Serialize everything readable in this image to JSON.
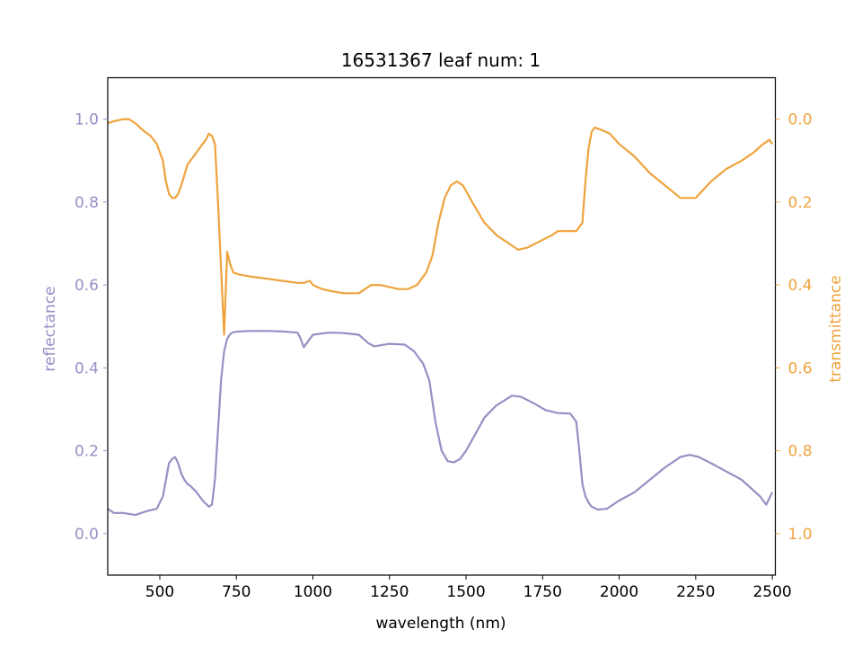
{
  "chart_data": {
    "type": "line",
    "title": "16531367 leaf num: 1",
    "xlabel": "wavelength (nm)",
    "ylabel_left": "reflectance",
    "ylabel_right": "transmittance",
    "xlim": [
      330,
      2510
    ],
    "ylim_left": [
      -0.1,
      1.1
    ],
    "ylim_right_inverted": [
      1.1,
      -0.1
    ],
    "grid": false,
    "x_ticks": [
      500,
      750,
      1000,
      1250,
      1500,
      1750,
      2000,
      2250,
      2500
    ],
    "y_ticks_left": [
      0.0,
      0.2,
      0.4,
      0.6,
      0.8,
      1.0
    ],
    "y_ticks_right": [
      0.0,
      0.2,
      0.4,
      0.6,
      0.8,
      1.0
    ],
    "colors": {
      "reflectance": "#9590c4",
      "transmittance": "#eea33d",
      "axis": "#000000"
    },
    "series": [
      {
        "name": "reflectance",
        "axis": "left",
        "x": [
          330,
          350,
          380,
          420,
          460,
          490,
          510,
          520,
          530,
          540,
          550,
          560,
          570,
          580,
          590,
          600,
          620,
          640,
          660,
          670,
          680,
          690,
          700,
          710,
          720,
          730,
          740,
          760,
          800,
          850,
          900,
          950,
          960,
          970,
          980,
          1000,
          1050,
          1100,
          1150,
          1180,
          1200,
          1250,
          1300,
          1330,
          1360,
          1380,
          1400,
          1420,
          1440,
          1460,
          1480,
          1500,
          1530,
          1560,
          1600,
          1650,
          1680,
          1720,
          1760,
          1800,
          1840,
          1860,
          1870,
          1880,
          1890,
          1900,
          1910,
          1930,
          1960,
          2000,
          2050,
          2100,
          2150,
          2200,
          2230,
          2260,
          2300,
          2350,
          2400,
          2430,
          2460,
          2480,
          2500
        ],
        "values": [
          0.06,
          0.05,
          0.05,
          0.045,
          0.055,
          0.06,
          0.09,
          0.13,
          0.17,
          0.18,
          0.185,
          0.17,
          0.145,
          0.13,
          0.12,
          0.115,
          0.1,
          0.08,
          0.065,
          0.07,
          0.13,
          0.25,
          0.37,
          0.44,
          0.47,
          0.482,
          0.486,
          0.488,
          0.489,
          0.489,
          0.488,
          0.485,
          0.47,
          0.45,
          0.46,
          0.48,
          0.485,
          0.484,
          0.48,
          0.46,
          0.452,
          0.458,
          0.456,
          0.44,
          0.41,
          0.37,
          0.27,
          0.2,
          0.175,
          0.172,
          0.18,
          0.2,
          0.24,
          0.28,
          0.31,
          0.333,
          0.33,
          0.315,
          0.298,
          0.291,
          0.29,
          0.27,
          0.2,
          0.12,
          0.09,
          0.075,
          0.065,
          0.058,
          0.06,
          0.08,
          0.1,
          0.13,
          0.16,
          0.185,
          0.19,
          0.185,
          0.17,
          0.15,
          0.13,
          0.11,
          0.09,
          0.07,
          0.1
        ]
      },
      {
        "name": "transmittance",
        "axis": "right",
        "x": [
          330,
          350,
          380,
          400,
          420,
          450,
          470,
          490,
          510,
          520,
          530,
          540,
          550,
          560,
          570,
          590,
          610,
          630,
          650,
          660,
          670,
          680,
          690,
          700,
          710,
          720,
          730,
          740,
          760,
          800,
          850,
          900,
          950,
          970,
          990,
          1000,
          1030,
          1060,
          1100,
          1150,
          1170,
          1190,
          1220,
          1250,
          1280,
          1310,
          1340,
          1370,
          1390,
          1410,
          1430,
          1450,
          1470,
          1490,
          1520,
          1560,
          1600,
          1640,
          1670,
          1700,
          1740,
          1780,
          1800,
          1830,
          1860,
          1880,
          1890,
          1900,
          1910,
          1920,
          1940,
          1970,
          2000,
          2050,
          2100,
          2150,
          2200,
          2250,
          2300,
          2350,
          2400,
          2440,
          2470,
          2490,
          2500
        ],
        "values": [
          0.01,
          0.005,
          0.0,
          0.0,
          0.01,
          0.03,
          0.04,
          0.06,
          0.1,
          0.15,
          0.18,
          0.19,
          0.19,
          0.18,
          0.16,
          0.11,
          0.09,
          0.07,
          0.05,
          0.035,
          0.04,
          0.06,
          0.2,
          0.36,
          0.52,
          0.32,
          0.35,
          0.37,
          0.375,
          0.38,
          0.385,
          0.39,
          0.395,
          0.395,
          0.39,
          0.4,
          0.41,
          0.415,
          0.42,
          0.42,
          0.41,
          0.4,
          0.4,
          0.405,
          0.41,
          0.41,
          0.4,
          0.37,
          0.33,
          0.25,
          0.19,
          0.16,
          0.15,
          0.16,
          0.2,
          0.25,
          0.28,
          0.3,
          0.315,
          0.31,
          0.295,
          0.28,
          0.27,
          0.27,
          0.27,
          0.25,
          0.15,
          0.07,
          0.03,
          0.02,
          0.025,
          0.035,
          0.06,
          0.09,
          0.13,
          0.16,
          0.19,
          0.19,
          0.15,
          0.12,
          0.1,
          0.08,
          0.06,
          0.05,
          0.06
        ]
      }
    ]
  }
}
